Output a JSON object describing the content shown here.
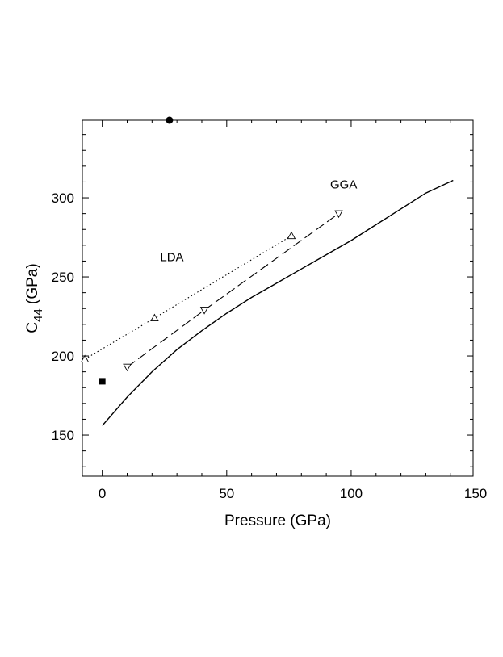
{
  "chart_data": {
    "type": "scatter",
    "title": "",
    "xlabel": "Pressure (GPa)",
    "ylabel": {
      "main": "C",
      "sub": "44",
      "unit": " (GPa)"
    },
    "xlim": [
      -8,
      149
    ],
    "ylim": [
      124,
      349
    ],
    "x_ticks": [
      0,
      50,
      100,
      150
    ],
    "y_ticks": [
      150,
      200,
      250,
      300
    ],
    "x_tick_labels": [
      "0",
      "50",
      "100",
      "150"
    ],
    "y_tick_labels": [
      "150",
      "200",
      "250",
      "300"
    ],
    "annotations": [
      {
        "text": "GGA",
        "x": 97,
        "y": 306
      },
      {
        "text": "LDA",
        "x": 28,
        "y": 260
      }
    ],
    "series": [
      {
        "type": "line",
        "style": "solid",
        "color": "#000000",
        "x": [
          0,
          10,
          20,
          30,
          40,
          50,
          60,
          70,
          80,
          90,
          100,
          110,
          120,
          130,
          141
        ],
        "y": [
          156,
          174,
          190,
          204,
          216,
          227,
          237,
          246,
          255,
          264,
          273,
          283,
          293,
          303,
          311
        ]
      },
      {
        "type": "line",
        "style": "dotted",
        "marker": "triangle-up",
        "color": "#000000",
        "x": [
          -7,
          21,
          76
        ],
        "y": [
          198,
          224,
          276
        ]
      },
      {
        "type": "line",
        "style": "dashed",
        "marker": "triangle-down",
        "color": "#000000",
        "x": [
          10,
          41,
          95
        ],
        "y": [
          193,
          229,
          290
        ]
      },
      {
        "type": "scatter",
        "marker": "circle-filled",
        "color": "#000000",
        "x": [
          27
        ],
        "y": [
          349
        ]
      },
      {
        "type": "scatter",
        "marker": "square-filled",
        "color": "#000000",
        "x": [
          0
        ],
        "y": [
          184
        ]
      }
    ]
  }
}
